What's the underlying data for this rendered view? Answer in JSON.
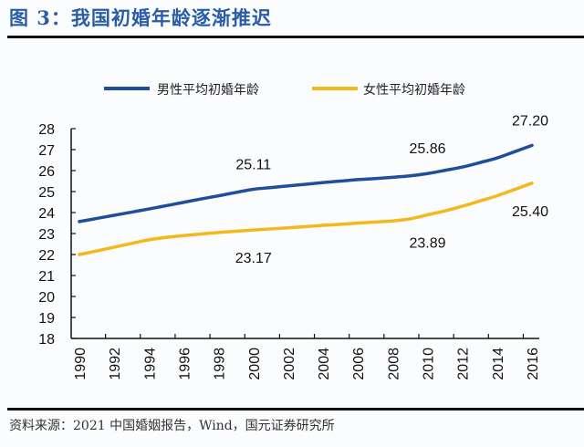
{
  "title": "图 3：我国初婚年龄逐渐推迟",
  "source": "资料来源：2021 中国婚姻报告，Wind，国元证券研究所",
  "chart_data": {
    "type": "line",
    "title": "我国初婚年龄逐渐推迟",
    "xlabel": "",
    "ylabel": "",
    "x": [
      1990,
      1991,
      1992,
      1993,
      1994,
      1995,
      1996,
      1997,
      1998,
      1999,
      2000,
      2001,
      2002,
      2003,
      2004,
      2005,
      2006,
      2007,
      2008,
      2009,
      2010,
      2011,
      2012,
      2013,
      2014,
      2015,
      2016
    ],
    "x_tick_labels": [
      "1990",
      "1992",
      "1994",
      "1996",
      "1998",
      "2000",
      "2002",
      "2004",
      "2006",
      "2008",
      "2010",
      "2012",
      "2014",
      "2016"
    ],
    "y_tick_labels": [
      "18",
      "19",
      "20",
      "21",
      "22",
      "23",
      "24",
      "25",
      "26",
      "27",
      "28"
    ],
    "ylim": [
      18,
      28
    ],
    "grid": false,
    "legend_position": "top",
    "series": [
      {
        "name": "男性平均初婚年龄",
        "color": "#1f4e9c",
        "values": [
          23.57,
          23.72,
          23.87,
          24.02,
          24.17,
          24.33,
          24.49,
          24.65,
          24.8,
          24.96,
          25.11,
          25.19,
          25.27,
          25.35,
          25.43,
          25.5,
          25.57,
          25.62,
          25.68,
          25.75,
          25.86,
          26.01,
          26.17,
          26.38,
          26.6,
          26.9,
          27.2
        ]
      },
      {
        "name": "女性平均初婚年龄",
        "color": "#f2b81c",
        "values": [
          22.0,
          22.17,
          22.35,
          22.53,
          22.7,
          22.82,
          22.9,
          22.98,
          23.05,
          23.11,
          23.17,
          23.22,
          23.27,
          23.33,
          23.39,
          23.44,
          23.5,
          23.55,
          23.6,
          23.7,
          23.89,
          24.08,
          24.3,
          24.55,
          24.8,
          25.1,
          25.4
        ]
      }
    ],
    "annotations": [
      {
        "series": 0,
        "x": 2000,
        "text": "25.11",
        "placement": "above"
      },
      {
        "series": 1,
        "x": 2000,
        "text": "23.17",
        "placement": "below"
      },
      {
        "series": 0,
        "x": 2010,
        "text": "25.86",
        "placement": "above"
      },
      {
        "series": 1,
        "x": 2010,
        "text": "23.89",
        "placement": "below"
      },
      {
        "series": 0,
        "x": 2016,
        "text": "27.20",
        "placement": "above"
      },
      {
        "series": 1,
        "x": 2016,
        "text": "25.40",
        "placement": "below"
      }
    ]
  }
}
